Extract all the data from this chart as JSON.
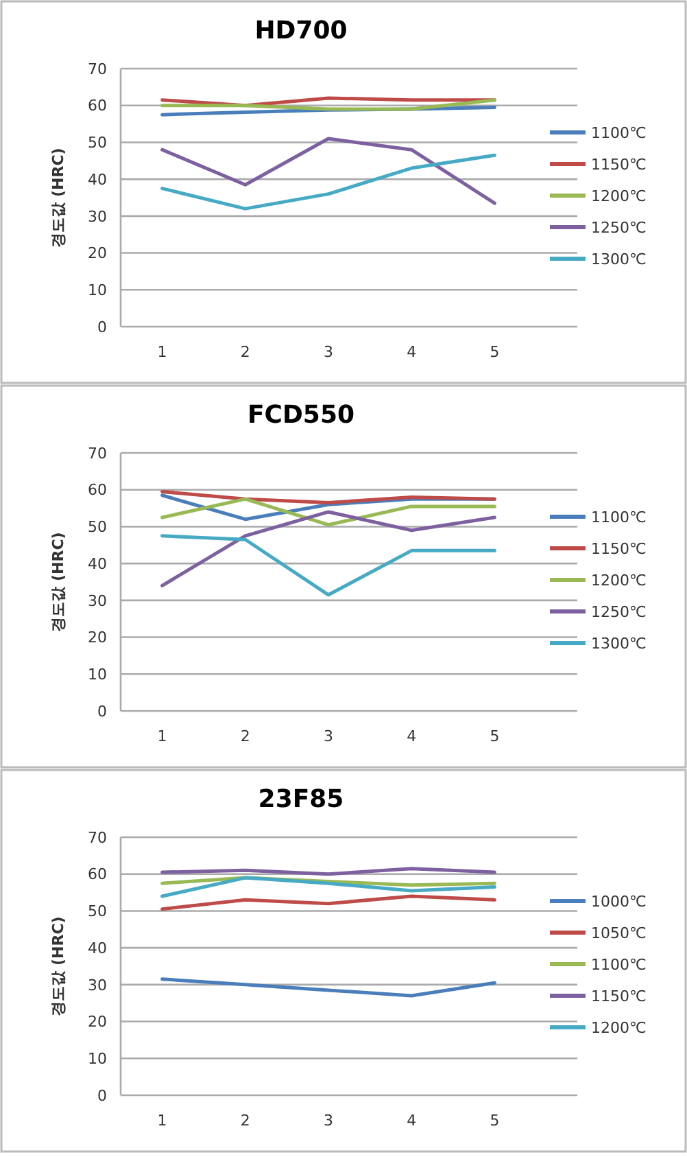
{
  "chart_data": [
    {
      "type": "line",
      "title": "HD700",
      "ylabel": "경도값 (HRC)",
      "categories": [
        "1",
        "2",
        "3",
        "4",
        "5"
      ],
      "ylim": [
        0,
        70
      ],
      "yticks": [
        0,
        10,
        20,
        30,
        40,
        50,
        60,
        70
      ],
      "grid": "y",
      "legend": "right",
      "marker": "none",
      "line_style": "solid",
      "series": [
        {
          "name": "1100℃",
          "color": "#4a7ebb",
          "values": [
            57.5,
            58.2,
            58.8,
            59,
            59.5
          ]
        },
        {
          "name": "1150℃",
          "color": "#be4b48",
          "values": [
            61.5,
            60,
            62,
            61.5,
            61.5
          ]
        },
        {
          "name": "1200℃",
          "color": "#98b954",
          "values": [
            60,
            60,
            59,
            59,
            61.5
          ]
        },
        {
          "name": "1250℃",
          "color": "#7d60a0",
          "values": [
            48,
            38.5,
            51,
            48,
            33.5
          ]
        },
        {
          "name": "1300℃",
          "color": "#46aac5",
          "values": [
            37.5,
            32,
            36,
            43,
            46.5
          ]
        }
      ]
    },
    {
      "type": "line",
      "title": "FCD550",
      "ylabel": "경도값 (HRC)",
      "categories": [
        "1",
        "2",
        "3",
        "4",
        "5"
      ],
      "ylim": [
        0,
        70
      ],
      "yticks": [
        0,
        10,
        20,
        30,
        40,
        50,
        60,
        70
      ],
      "grid": "y",
      "legend": "right",
      "marker": "none",
      "line_style": "solid",
      "series": [
        {
          "name": "1100℃",
          "color": "#4a7ebb",
          "values": [
            58.5,
            52,
            56,
            57.5,
            57.5
          ]
        },
        {
          "name": "1150℃",
          "color": "#be4b48",
          "values": [
            59.5,
            57.5,
            56.5,
            58,
            57.5
          ]
        },
        {
          "name": "1200℃",
          "color": "#98b954",
          "values": [
            52.5,
            57.5,
            50.5,
            55.5,
            55.5
          ]
        },
        {
          "name": "1250℃",
          "color": "#7d60a0",
          "values": [
            34,
            47.5,
            54,
            49,
            52.5
          ]
        },
        {
          "name": "1300℃",
          "color": "#46aac5",
          "values": [
            47.5,
            46.5,
            31.5,
            43.5,
            43.5
          ]
        }
      ]
    },
    {
      "type": "line",
      "title": "23F85",
      "ylabel": "경도값 (HRC)",
      "categories": [
        "1",
        "2",
        "3",
        "4",
        "5"
      ],
      "ylim": [
        0,
        70
      ],
      "yticks": [
        0,
        10,
        20,
        30,
        40,
        50,
        60,
        70
      ],
      "grid": "y",
      "legend": "right",
      "marker": "none",
      "line_style": "solid",
      "series": [
        {
          "name": "1000℃",
          "color": "#4a7ebb",
          "values": [
            31.5,
            30,
            28.5,
            27,
            30.5
          ]
        },
        {
          "name": "1050℃",
          "color": "#be4b48",
          "values": [
            50.5,
            53,
            52,
            54,
            53
          ]
        },
        {
          "name": "1100℃",
          "color": "#98b954",
          "values": [
            57.5,
            59,
            58,
            57,
            57.5
          ]
        },
        {
          "name": "1150℃",
          "color": "#7d60a0",
          "values": [
            60.5,
            61,
            60,
            61.5,
            60.5
          ]
        },
        {
          "name": "1200℃",
          "color": "#46aac5",
          "values": [
            54,
            59,
            57.5,
            55.5,
            56.5
          ]
        }
      ]
    }
  ]
}
